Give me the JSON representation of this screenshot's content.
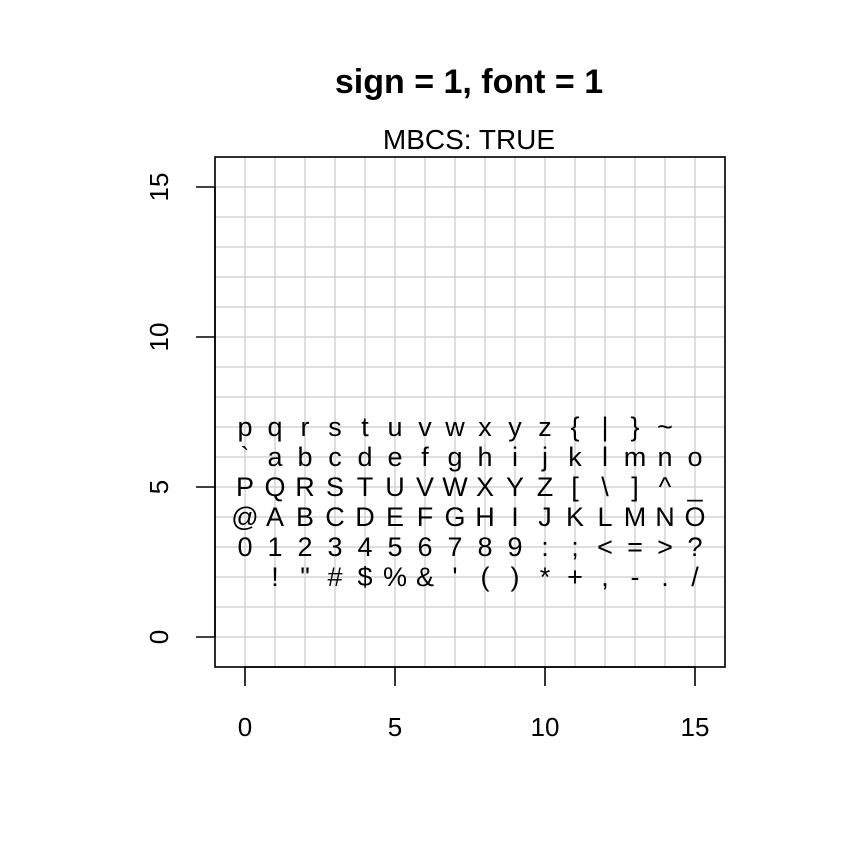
{
  "chart_data": {
    "type": "scatter",
    "title": "sign = 1, font = 1",
    "subtitle": "MBCS: TRUE",
    "xlabel": "",
    "ylabel": "",
    "xlim": [
      -1,
      16
    ],
    "ylim": [
      -1,
      16
    ],
    "x_ticks": [
      0,
      5,
      10,
      15
    ],
    "y_ticks": [
      0,
      5,
      10,
      15
    ],
    "grid": true,
    "grid_color": "#d3d3d3",
    "rows": [
      {
        "y": 2,
        "chars": [
          " ",
          "!",
          "\"",
          "#",
          "$",
          "%",
          "&",
          "'",
          "(",
          ")",
          "*",
          "+",
          ",",
          "-",
          ".",
          "/"
        ]
      },
      {
        "y": 3,
        "chars": [
          "0",
          "1",
          "2",
          "3",
          "4",
          "5",
          "6",
          "7",
          "8",
          "9",
          ":",
          ";",
          "<",
          "=",
          ">",
          "?"
        ]
      },
      {
        "y": 4,
        "chars": [
          "@",
          "A",
          "B",
          "C",
          "D",
          "E",
          "F",
          "G",
          "H",
          "I",
          "J",
          "K",
          "L",
          "M",
          "N",
          "O"
        ]
      },
      {
        "y": 5,
        "chars": [
          "P",
          "Q",
          "R",
          "S",
          "T",
          "U",
          "V",
          "W",
          "X",
          "Y",
          "Z",
          "[",
          "\\",
          "]",
          "^",
          "_"
        ]
      },
      {
        "y": 6,
        "chars": [
          "`",
          "a",
          "b",
          "c",
          "d",
          "e",
          "f",
          "g",
          "h",
          "i",
          "j",
          "k",
          "l",
          "m",
          "n",
          "o"
        ]
      },
      {
        "y": 7,
        "chars": [
          "p",
          "q",
          "r",
          "s",
          "t",
          "u",
          "v",
          "w",
          "x",
          "y",
          "z",
          "{",
          "|",
          "}",
          "~",
          ""
        ]
      }
    ]
  }
}
